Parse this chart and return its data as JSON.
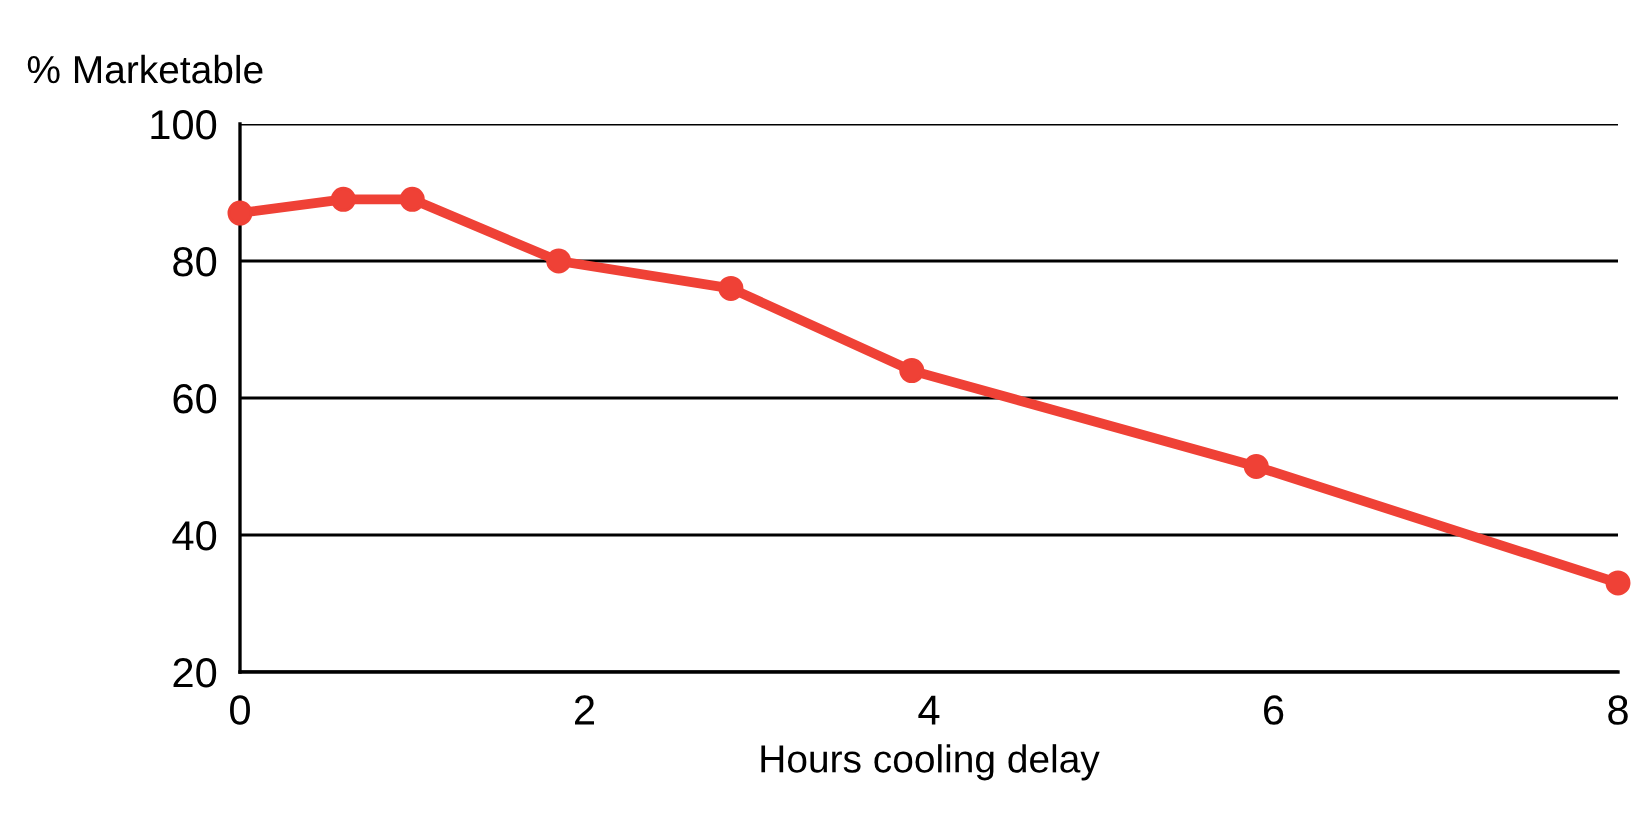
{
  "chart_data": {
    "type": "line",
    "ylabel": "% Marketable",
    "xlabel": "Hours cooling delay",
    "x": [
      0,
      0.6,
      1,
      1.85,
      2.85,
      3.9,
      5.9,
      8
    ],
    "series": [
      {
        "color": "#ef4136",
        "values": [
          87,
          89,
          89,
          80,
          76,
          64,
          50,
          33
        ]
      }
    ],
    "xlim": [
      0,
      8
    ],
    "xticks": [
      0,
      2,
      4,
      6,
      8
    ],
    "ylim": [
      20,
      100
    ],
    "yticks": [
      20,
      40,
      60,
      80,
      100
    ],
    "grid": "y",
    "marker": "circle",
    "line_style": "solid"
  }
}
